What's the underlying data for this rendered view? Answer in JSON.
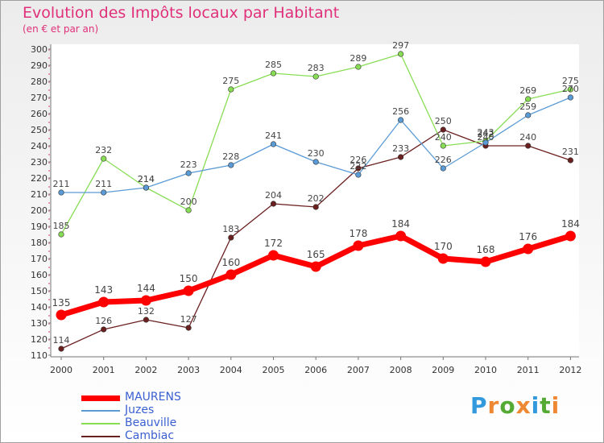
{
  "header": {
    "title": "Evolution des Impôts locaux par Habitant",
    "subtitle": "(en € et par an)"
  },
  "brand": {
    "letters": [
      "P",
      "r",
      "o",
      "x",
      "i",
      "t",
      "i"
    ],
    "colors": [
      "#3399dd",
      "#ee8833",
      "#55aa33",
      "#ee8833",
      "#3399dd",
      "#55aa33",
      "#ee8833"
    ]
  },
  "chart_data": {
    "type": "line",
    "title": "Evolution des Impôts locaux par Habitant",
    "subtitle": "(en € et par an)",
    "xlabel": "",
    "ylabel": "",
    "categories": [
      "2000",
      "2001",
      "2002",
      "2003",
      "2004",
      "2005",
      "2006",
      "2007",
      "2008",
      "2009",
      "2010",
      "2011",
      "2012"
    ],
    "ylim": [
      110,
      300
    ],
    "yticks": [
      110,
      120,
      130,
      140,
      150,
      160,
      170,
      180,
      190,
      200,
      210,
      220,
      230,
      240,
      250,
      260,
      270,
      280,
      290,
      300
    ],
    "grid": false,
    "legend_position": "bottom-left",
    "series": [
      {
        "name": "MAURENS",
        "color": "#ff0000",
        "values": [
          135,
          143,
          144,
          150,
          160,
          172,
          165,
          178,
          184,
          170,
          168,
          176,
          184
        ]
      },
      {
        "name": "Juzes",
        "color": "#5b9bd5",
        "values": [
          211,
          211,
          214,
          223,
          228,
          241,
          230,
          222,
          256,
          226,
          242,
          259,
          270
        ]
      },
      {
        "name": "Beauville",
        "color": "#88dd55",
        "values": [
          185,
          232,
          214,
          200,
          275,
          285,
          283,
          289,
          297,
          240,
          243,
          269,
          275
        ]
      },
      {
        "name": "Cambiac",
        "color": "#6b2020",
        "values": [
          114,
          126,
          132,
          127,
          183,
          204,
          202,
          226,
          233,
          250,
          240,
          240,
          231
        ]
      }
    ]
  }
}
